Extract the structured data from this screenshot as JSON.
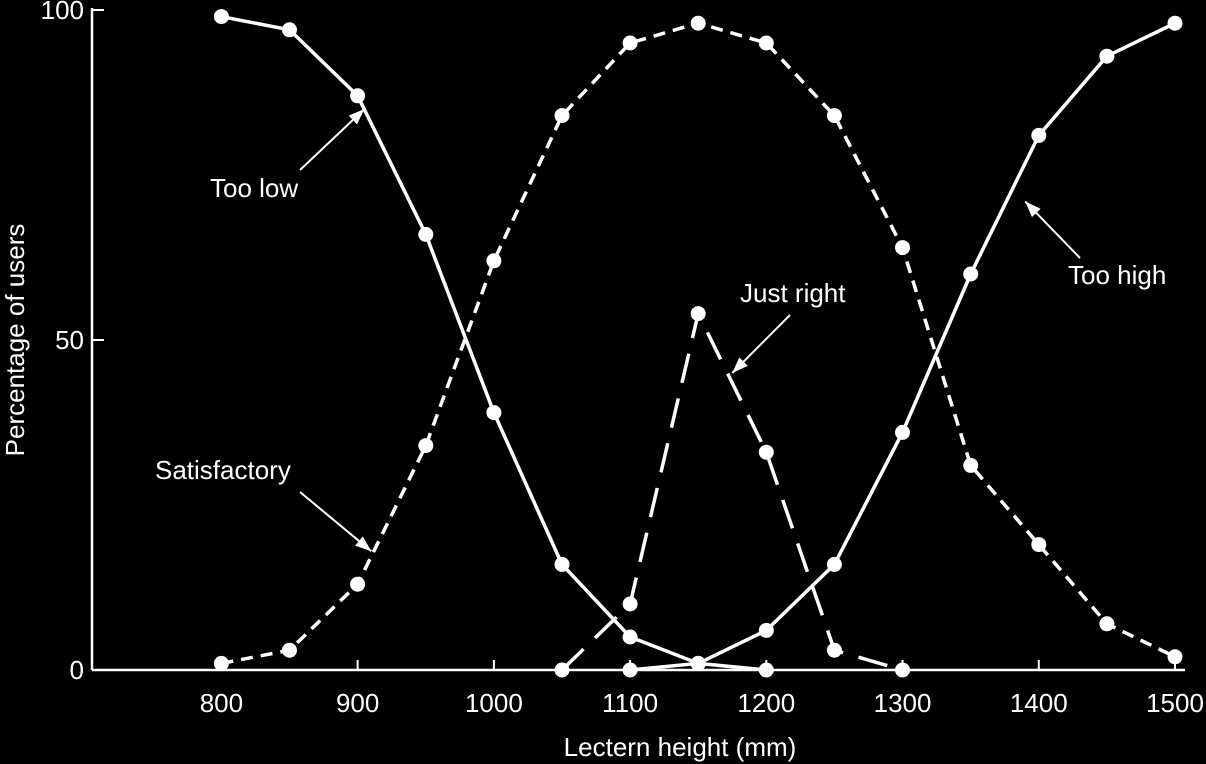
{
  "chart_data": {
    "type": "line",
    "title": "",
    "xlabel": "Lectern height (mm)",
    "ylabel": "Percentage of users",
    "xlim": [
      705,
      1500
    ],
    "ylim": [
      0,
      100
    ],
    "x_ticks": [
      800,
      900,
      1000,
      1100,
      1200,
      1300,
      1400,
      1500
    ],
    "y_ticks": [
      0,
      50,
      100
    ],
    "grid": false,
    "legend": "none",
    "colors": {
      "background": "#000000",
      "foreground": "#ffffff"
    },
    "series": [
      {
        "name": "Too low",
        "style": "solid",
        "x": [
          800,
          850,
          900,
          950,
          1000,
          1050,
          1100,
          1150,
          1200
        ],
        "y": [
          99,
          97,
          87,
          66,
          39,
          16,
          5,
          1,
          0
        ]
      },
      {
        "name": "Satisfactory",
        "style": "short-dash",
        "x": [
          800,
          850,
          900,
          950,
          1000,
          1050,
          1100,
          1150,
          1200,
          1250,
          1300,
          1350,
          1400,
          1450,
          1500
        ],
        "y": [
          1,
          3,
          13,
          34,
          62,
          84,
          95,
          98,
          95,
          84,
          64,
          31,
          19,
          7,
          2
        ]
      },
      {
        "name": "Just right",
        "style": "long-dash",
        "x": [
          1050,
          1100,
          1150,
          1200,
          1250,
          1300
        ],
        "y": [
          0,
          10,
          54,
          33,
          3,
          0
        ]
      },
      {
        "name": "Too high",
        "style": "solid",
        "x": [
          1100,
          1150,
          1200,
          1250,
          1300,
          1350,
          1400,
          1450,
          1500
        ],
        "y": [
          0,
          1,
          6,
          16,
          36,
          60,
          81,
          93,
          98
        ]
      }
    ],
    "annotations": [
      {
        "text": "Too low",
        "series": 0,
        "arrow_to": [
          905,
          85
        ]
      },
      {
        "text": "Satisfactory",
        "series": 1,
        "arrow_to": [
          910,
          18
        ]
      },
      {
        "text": "Just right",
        "series": 2,
        "arrow_to": [
          1175,
          45
        ]
      },
      {
        "text": "Too high",
        "series": 3,
        "arrow_to": [
          1390,
          71
        ]
      }
    ]
  }
}
